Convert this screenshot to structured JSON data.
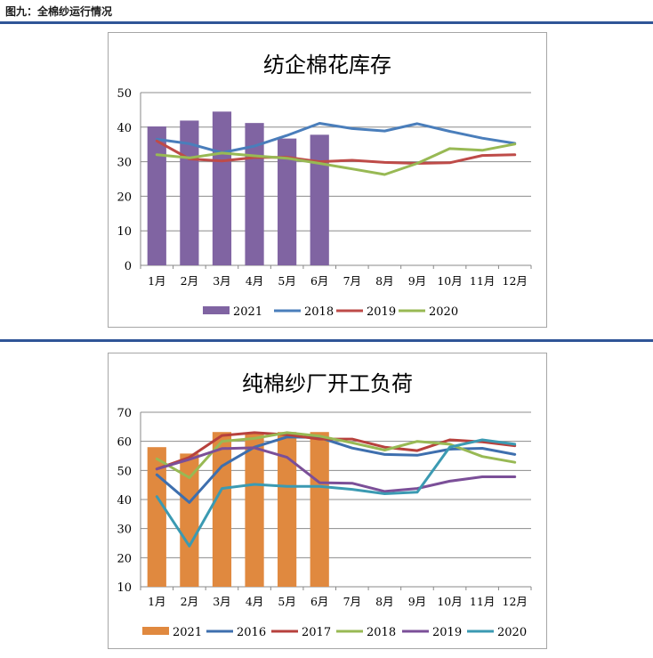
{
  "figure_title": "图九：全棉纱运行情况",
  "colors": {
    "rule": "#2f5597",
    "bar_purple": "#8064a2",
    "bar_orange": "#e0893f",
    "s2016": "#3e6fae",
    "s2017": "#b7413d",
    "s2018_blue": "#4a7ebb",
    "s2018_green": "#98b954",
    "s2019_red": "#be4b48",
    "s2019_purple": "#7b4f98",
    "s2020_green": "#98b954",
    "s2020_teal": "#3b9ab2",
    "grid": "#8c8c8c"
  },
  "chart_data": [
    {
      "type": "bar",
      "title": "纺企棉花库存",
      "xlabel": "",
      "ylabel": "",
      "ylim": [
        0,
        50
      ],
      "yticks": [
        0,
        10,
        20,
        30,
        40,
        50
      ],
      "grid": true,
      "legend_position": "bottom",
      "categories": [
        "1月",
        "2月",
        "3月",
        "4月",
        "5月",
        "6月",
        "7月",
        "8月",
        "9月",
        "10月",
        "11月",
        "12月"
      ],
      "series": [
        {
          "name": "2021",
          "type": "bar",
          "color_key": "bar_purple",
          "values": [
            40.2,
            41.9,
            44.5,
            41.2,
            36.7,
            37.8,
            null,
            null,
            null,
            null,
            null,
            null
          ]
        },
        {
          "name": "2018",
          "type": "line",
          "color_key": "s2018_blue",
          "values": [
            36.5,
            35.2,
            32.6,
            34.5,
            37.6,
            41.1,
            39.6,
            38.9,
            41.0,
            38.8,
            36.8,
            35.3
          ]
        },
        {
          "name": "2019",
          "type": "line",
          "color_key": "s2019_red",
          "values": [
            36.0,
            30.8,
            30.2,
            31.2,
            31.3,
            30.0,
            30.4,
            29.8,
            29.5,
            29.7,
            31.8,
            32.0
          ]
        },
        {
          "name": "2020",
          "type": "line",
          "color_key": "s2020_green",
          "values": [
            32.0,
            31.1,
            32.5,
            31.7,
            31.0,
            29.5,
            27.9,
            26.3,
            29.5,
            33.8,
            33.3,
            35.1
          ]
        }
      ]
    },
    {
      "type": "bar",
      "title": "纯棉纱厂开工负荷",
      "xlabel": "",
      "ylabel": "",
      "ylim": [
        10,
        70
      ],
      "yticks": [
        10,
        20,
        30,
        40,
        50,
        60,
        70
      ],
      "grid": true,
      "legend_position": "bottom",
      "categories": [
        "1月",
        "2月",
        "3月",
        "4月",
        "5月",
        "6月",
        "7月",
        "8月",
        "9月",
        "10月",
        "11月",
        "12月"
      ],
      "series": [
        {
          "name": "2021",
          "type": "bar",
          "color_key": "bar_orange",
          "values": [
            58.0,
            55.8,
            63.2,
            62.5,
            63.2,
            63.2,
            null,
            null,
            null,
            null,
            null,
            null
          ]
        },
        {
          "name": "2016",
          "type": "line",
          "color_key": "s2016",
          "values": [
            48.5,
            39.0,
            51.5,
            58.0,
            61.5,
            61.3,
            57.7,
            55.5,
            55.2,
            57.3,
            57.6,
            55.5
          ]
        },
        {
          "name": "2017",
          "type": "line",
          "color_key": "s2017",
          "values": [
            50.5,
            54.5,
            62.0,
            63.0,
            62.3,
            60.8,
            60.8,
            58.0,
            56.8,
            60.5,
            59.8,
            58.5
          ]
        },
        {
          "name": "2018",
          "type": "line",
          "color_key": "s2018_green",
          "values": [
            54.0,
            47.5,
            60.0,
            61.0,
            63.0,
            61.8,
            59.5,
            57.0,
            60.0,
            59.0,
            54.8,
            52.8
          ]
        },
        {
          "name": "2019",
          "type": "line",
          "color_key": "s2019_purple",
          "values": [
            50.5,
            53.8,
            57.5,
            57.8,
            54.5,
            45.8,
            45.6,
            42.8,
            43.8,
            46.3,
            47.8,
            47.8
          ]
        },
        {
          "name": "2020",
          "type": "line",
          "color_key": "s2020_teal",
          "values": [
            41.0,
            24.0,
            43.8,
            45.2,
            44.5,
            44.5,
            43.5,
            42.0,
            42.5,
            58.0,
            60.5,
            59.0
          ]
        }
      ]
    }
  ]
}
